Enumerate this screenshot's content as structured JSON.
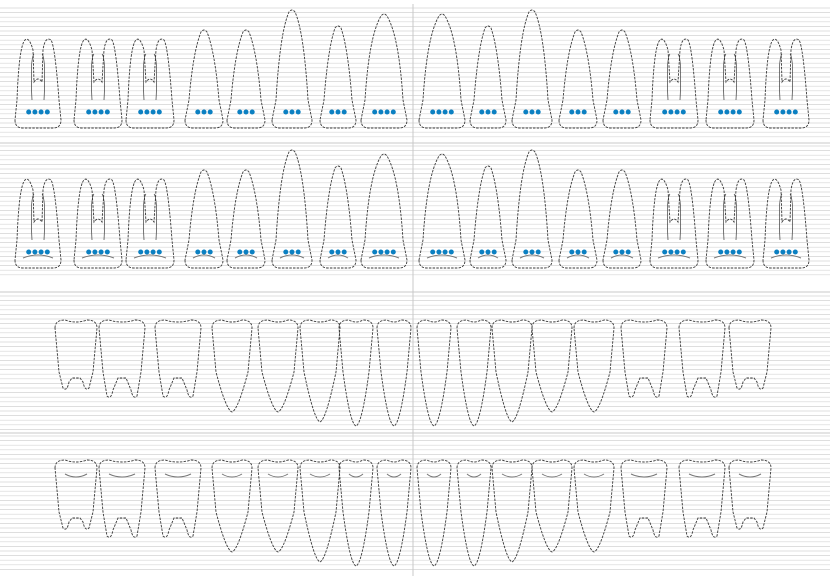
{
  "title": "",
  "colors": {
    "background": "#ffffff",
    "grid_line": "#d4d4d4",
    "divider": "#c8c8c8",
    "tooth_outline": "#3a3a3a",
    "dot": "#0b80c2",
    "occlusal_mark": "#777777"
  },
  "icons": {
    "tooth": "tooth-icon",
    "dot": "measurement-dot"
  },
  "chart": {
    "type": "dental-periodontal-chart",
    "grid": true,
    "quadrant_divider": true
  },
  "rows": [
    {
      "name": "upper-buccal-view",
      "arch": "upper",
      "occlusal_marks": false,
      "teeth": [
        {
          "type": "molar3",
          "dots": 4
        },
        {
          "type": "molar",
          "dots": 4
        },
        {
          "type": "molar",
          "dots": 4
        },
        {
          "type": "premolar",
          "dots": 3
        },
        {
          "type": "premolar",
          "dots": 3
        },
        {
          "type": "canine",
          "dots": 3
        },
        {
          "type": "lateral",
          "dots": 3
        },
        {
          "type": "central",
          "dots": 4
        },
        {
          "type": "central",
          "dots": 4
        },
        {
          "type": "lateral",
          "dots": 3
        },
        {
          "type": "canine",
          "dots": 3
        },
        {
          "type": "premolar",
          "dots": 3
        },
        {
          "type": "premolar",
          "dots": 3
        },
        {
          "type": "molar",
          "dots": 4
        },
        {
          "type": "molar",
          "dots": 4
        },
        {
          "type": "molar3",
          "dots": 4
        }
      ]
    },
    {
      "name": "upper-lingual-view",
      "arch": "upper",
      "occlusal_marks": true,
      "teeth": [
        {
          "type": "molar3",
          "dots": 4
        },
        {
          "type": "molar",
          "dots": 4
        },
        {
          "type": "molar",
          "dots": 4
        },
        {
          "type": "premolar",
          "dots": 3
        },
        {
          "type": "premolar",
          "dots": 3
        },
        {
          "type": "canine",
          "dots": 3
        },
        {
          "type": "lateral",
          "dots": 3
        },
        {
          "type": "central",
          "dots": 4
        },
        {
          "type": "central",
          "dots": 4
        },
        {
          "type": "lateral",
          "dots": 3
        },
        {
          "type": "canine",
          "dots": 3
        },
        {
          "type": "premolar",
          "dots": 3
        },
        {
          "type": "premolar",
          "dots": 3
        },
        {
          "type": "molar",
          "dots": 4
        },
        {
          "type": "molar",
          "dots": 4
        },
        {
          "type": "molar3",
          "dots": 4
        }
      ]
    },
    {
      "name": "lower-lingual-view",
      "arch": "lower",
      "occlusal_marks": false,
      "teeth": [
        {
          "type": "molar3"
        },
        {
          "type": "molar"
        },
        {
          "type": "molar"
        },
        {
          "type": "premolar"
        },
        {
          "type": "premolar"
        },
        {
          "type": "canine"
        },
        {
          "type": "incisor"
        },
        {
          "type": "incisor"
        },
        {
          "type": "incisor"
        },
        {
          "type": "incisor"
        },
        {
          "type": "canine"
        },
        {
          "type": "premolar"
        },
        {
          "type": "premolar"
        },
        {
          "type": "molar"
        },
        {
          "type": "molar"
        },
        {
          "type": "molar3"
        }
      ]
    },
    {
      "name": "lower-buccal-view",
      "arch": "lower",
      "occlusal_marks": true,
      "teeth": [
        {
          "type": "molar3"
        },
        {
          "type": "molar"
        },
        {
          "type": "molar"
        },
        {
          "type": "premolar"
        },
        {
          "type": "premolar"
        },
        {
          "type": "canine"
        },
        {
          "type": "incisor"
        },
        {
          "type": "incisor"
        },
        {
          "type": "incisor"
        },
        {
          "type": "incisor"
        },
        {
          "type": "canine"
        },
        {
          "type": "premolar"
        },
        {
          "type": "premolar"
        },
        {
          "type": "molar"
        },
        {
          "type": "molar"
        },
        {
          "type": "molar3"
        }
      ]
    }
  ]
}
